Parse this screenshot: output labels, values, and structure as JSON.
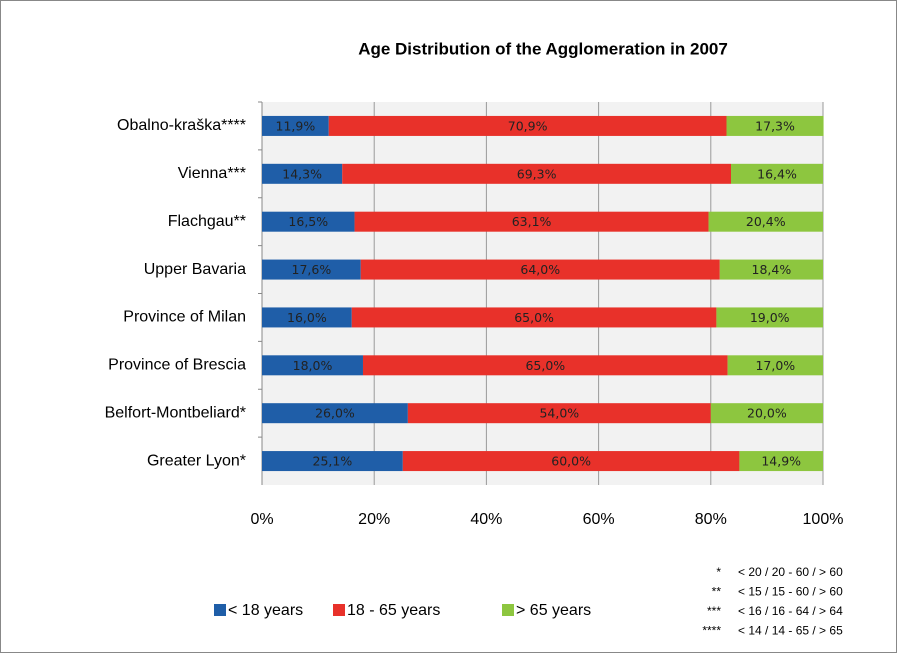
{
  "chart_data": {
    "type": "stacked_bar_horizontal",
    "title": "Age Distribution of the Agglomeration in 2007",
    "categories": [
      "Obalno-kraška****",
      "Vienna***",
      "Flachgau**",
      "Upper Bavaria",
      "Province of  Milan",
      "Province of Brescia",
      "Belfort-Montbeliard*",
      "Greater Lyon*"
    ],
    "series": [
      {
        "name": "< 18 years",
        "color": "#1f5ea8",
        "values": [
          11.9,
          14.3,
          16.5,
          17.6,
          16.0,
          18.0,
          26.0,
          25.1
        ],
        "value_labels": [
          "11,9%",
          "14,3%",
          "16,5%",
          "17,6%",
          "16,0%",
          "18,0%",
          "26,0%",
          "25,1%"
        ]
      },
      {
        "name": "18 - 65 years",
        "color": "#e8312a",
        "values": [
          70.9,
          69.3,
          63.1,
          64.0,
          65.0,
          65.0,
          54.0,
          60.0
        ],
        "value_labels": [
          "70,9%",
          "69,3%",
          "63,1%",
          "64,0%",
          "65,0%",
          "65,0%",
          "54,0%",
          "60,0%"
        ]
      },
      {
        "name": "> 65 years",
        "color": "#8dc63f",
        "values": [
          17.3,
          16.4,
          20.4,
          18.4,
          19.0,
          17.0,
          20.0,
          14.9
        ],
        "value_labels": [
          "17,3%",
          "16,4%",
          "20,4%",
          "18,4%",
          "19,0%",
          "17,0%",
          "20,0%",
          "14,9%"
        ]
      }
    ],
    "xlim": [
      0,
      100
    ],
    "xticks": [
      {
        "value": 0,
        "label": "0%"
      },
      {
        "value": 20,
        "label": "20%"
      },
      {
        "value": 40,
        "label": "40%"
      },
      {
        "value": 60,
        "label": "60%"
      },
      {
        "value": 80,
        "label": "80%"
      },
      {
        "value": 100,
        "label": "100%"
      }
    ],
    "grid": true,
    "legend": "bottom",
    "notes": [
      {
        "mark": "*",
        "text": "< 20 / 20 - 60 / > 60"
      },
      {
        "mark": "**",
        "text": "< 15 / 15 - 60 / > 60"
      },
      {
        "mark": "***",
        "text": "< 16 / 16 - 64 / > 64"
      },
      {
        "mark": "****",
        "text": "< 14 / 14 - 65 / > 65"
      }
    ]
  }
}
